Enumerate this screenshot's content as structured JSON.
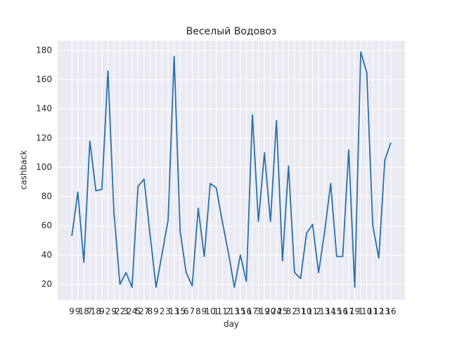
{
  "chart_data": {
    "type": "line",
    "title": "Веселый Водовоз",
    "x_label": "day",
    "y_label": "cashback",
    "categories": [
      "9",
      "9",
      "18",
      "7",
      "18",
      "9",
      "2",
      "9",
      "22",
      "3",
      "24",
      "5",
      "27",
      "8",
      "9",
      "2",
      "3",
      "13",
      "15",
      "6",
      "7",
      "8",
      "9",
      "10",
      "1",
      "11",
      "2",
      "13",
      "15",
      "16",
      "17",
      "3",
      "19",
      "20",
      "24",
      "25",
      "8",
      "2",
      "31",
      "10",
      "11",
      "2",
      "13",
      "14",
      "15",
      "16",
      "17",
      "19",
      "1",
      "10",
      "11",
      "12",
      "13",
      "16"
    ],
    "series": [
      {
        "name": "cashback",
        "color": "#2a70aa",
        "values": [
          53,
          83,
          35,
          118,
          84,
          85,
          166,
          69,
          20,
          28,
          18,
          87,
          92,
          54,
          18,
          41,
          64,
          176,
          56,
          28,
          19,
          72,
          39,
          89,
          86,
          63,
          42,
          18,
          40,
          22,
          136,
          63,
          110,
          63,
          132,
          36,
          101,
          28,
          24,
          55,
          61,
          28,
          56,
          89,
          39,
          39,
          112,
          18,
          179,
          165,
          60,
          38,
          105,
          117
        ]
      }
    ],
    "ylim": [
      9.4,
      186.7
    ],
    "yticks": [
      20,
      40,
      60,
      80,
      100,
      120,
      140,
      160,
      180
    ],
    "grid": true
  }
}
